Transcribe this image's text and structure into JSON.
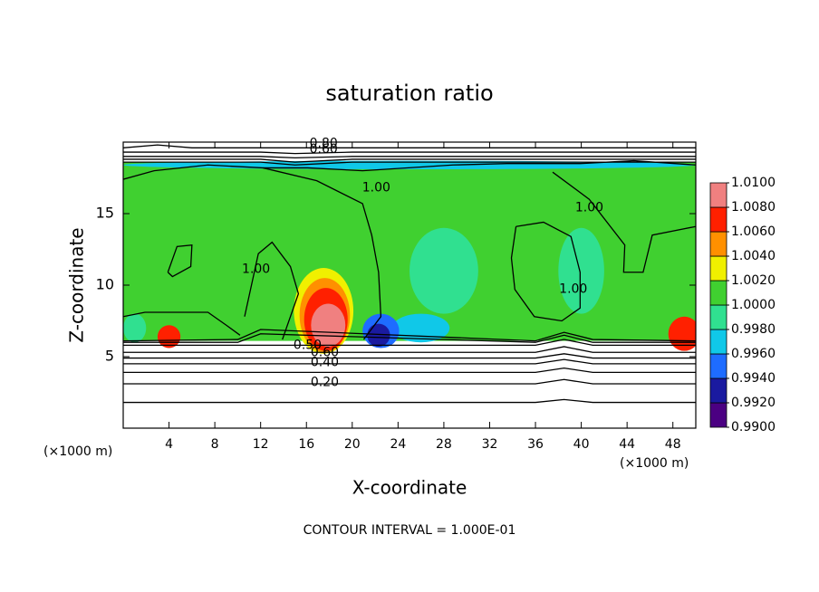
{
  "chart_data": {
    "type": "contour",
    "title": "saturation ratio",
    "xlabel": "X-coordinate",
    "ylabel": "Z-coordinate",
    "xunit": "(×1000 m)",
    "yunit": "(×1000 m)",
    "footer": "CONTOUR INTERVAL = 1.000E-01",
    "xlim": [
      0,
      50
    ],
    "ylim": [
      0,
      20
    ],
    "xticks": [
      4,
      8,
      12,
      16,
      20,
      24,
      28,
      32,
      36,
      40,
      44,
      48
    ],
    "yticks": [
      5,
      10,
      15
    ],
    "field_zlim": [
      6.1,
      18.6
    ],
    "background_value": 1.0005,
    "colorbar": {
      "lim": [
        0.99,
        1.01
      ],
      "colors": [
        "#4b0082",
        "#1a1aa0",
        "#1e6cff",
        "#10c8e8",
        "#30e090",
        "#40d030",
        "#f0f000",
        "#ff9000",
        "#ff2000",
        "#f08080"
      ],
      "ticks": [
        {
          "value": 1.01,
          "label": "1.0100"
        },
        {
          "value": 1.008,
          "label": "1.0080"
        },
        {
          "value": 1.006,
          "label": "1.0060"
        },
        {
          "value": 1.004,
          "label": "1.0040"
        },
        {
          "value": 1.002,
          "label": "1.0020"
        },
        {
          "value": 1.0,
          "label": "1.0000"
        },
        {
          "value": 0.998,
          "label": "0.9980"
        },
        {
          "value": 0.996,
          "label": "0.9960"
        },
        {
          "value": 0.994,
          "label": "0.9940"
        },
        {
          "value": 0.992,
          "label": "0.9920"
        },
        {
          "value": 0.99,
          "label": "0.9900"
        }
      ]
    },
    "features": [
      {
        "x": 25,
        "y": 18.4,
        "rx": 25,
        "ry": 0.3,
        "value": 0.997
      },
      {
        "x": 28,
        "y": 11,
        "rx": 3,
        "ry": 3,
        "value": 0.999
      },
      {
        "x": 40,
        "y": 11,
        "rx": 2,
        "ry": 3,
        "value": 0.999
      },
      {
        "x": 26,
        "y": 7,
        "rx": 2.5,
        "ry": 1,
        "value": 0.997
      },
      {
        "x": 1,
        "y": 7,
        "rx": 1,
        "ry": 1,
        "value": 0.999
      },
      {
        "x": 17.5,
        "y": 8.2,
        "rx": 2.6,
        "ry": 3.0,
        "value": 1.003
      },
      {
        "x": 17.6,
        "y": 7.9,
        "rx": 2.2,
        "ry": 2.6,
        "value": 1.005
      },
      {
        "x": 17.7,
        "y": 7.6,
        "rx": 1.9,
        "ry": 2.2,
        "value": 1.007
      },
      {
        "x": 17.9,
        "y": 7.2,
        "rx": 1.5,
        "ry": 1.5,
        "value": 1.009
      },
      {
        "x": 4,
        "y": 6.4,
        "rx": 1.0,
        "ry": 0.8,
        "value": 1.006
      },
      {
        "x": 49,
        "y": 6.6,
        "rx": 1.4,
        "ry": 1.2,
        "value": 1.006
      },
      {
        "x": 22.5,
        "y": 6.8,
        "rx": 1.6,
        "ry": 1.2,
        "value": 0.995
      },
      {
        "x": 22.3,
        "y": 6.5,
        "rx": 1.0,
        "ry": 0.8,
        "value": 0.993
      }
    ],
    "contours": [
      {
        "level": 0.1,
        "x": [
          0,
          12,
          36,
          38.5,
          41,
          50
        ],
        "y": [
          1.8,
          1.8,
          1.8,
          2.0,
          1.8,
          1.8
        ]
      },
      {
        "level": 0.2,
        "x": [
          0,
          12,
          36,
          38.5,
          41,
          50
        ],
        "y": [
          3.1,
          3.1,
          3.1,
          3.4,
          3.1,
          3.1
        ]
      },
      {
        "level": 0.3,
        "x": [
          0,
          12,
          36,
          38.5,
          41,
          50
        ],
        "y": [
          3.9,
          3.9,
          3.9,
          4.2,
          3.9,
          3.9
        ]
      },
      {
        "level": 0.4,
        "x": [
          0,
          12,
          36,
          38.5,
          41,
          50
        ],
        "y": [
          4.5,
          4.5,
          4.5,
          4.8,
          4.5,
          4.5
        ]
      },
      {
        "level": 0.5,
        "x": [
          0,
          12,
          36,
          38.5,
          41,
          50
        ],
        "y": [
          4.9,
          4.9,
          4.9,
          5.2,
          4.9,
          4.9
        ]
      },
      {
        "level": 0.6,
        "x": [
          0,
          12,
          36,
          38.5,
          41,
          50
        ],
        "y": [
          5.3,
          5.3,
          5.3,
          5.7,
          5.3,
          5.3
        ]
      },
      {
        "level": 0.7,
        "x": [
          0,
          12,
          36,
          38.5,
          41,
          50
        ],
        "y": [
          5.8,
          5.8,
          5.8,
          6.2,
          5.8,
          5.8
        ]
      },
      {
        "level": 0.8,
        "x": [
          0,
          10,
          12,
          36,
          38.5,
          41,
          50
        ],
        "y": [
          6.0,
          6.0,
          6.6,
          6.0,
          6.5,
          6.0,
          6.0
        ]
      },
      {
        "level": 0.9,
        "x": [
          0,
          10,
          12,
          36,
          38.5,
          41,
          50
        ],
        "y": [
          6.1,
          6.2,
          6.9,
          6.1,
          6.7,
          6.2,
          6.1
        ]
      },
      {
        "level": 0.9,
        "x": [
          0,
          12,
          15,
          20,
          50
        ],
        "y": [
          18.6,
          18.6,
          18.4,
          18.6,
          18.6
        ]
      },
      {
        "level": 0.8,
        "x": [
          0,
          12,
          15,
          20,
          50
        ],
        "y": [
          18.8,
          18.8,
          18.6,
          18.8,
          18.8
        ]
      },
      {
        "level": 0.7,
        "x": [
          0,
          12,
          15,
          20,
          50
        ],
        "y": [
          19.0,
          19.0,
          18.9,
          19.0,
          19.0
        ]
      },
      {
        "level": 0.6,
        "x": [
          0,
          12,
          15,
          20,
          50
        ],
        "y": [
          19.3,
          19.3,
          19.2,
          19.3,
          19.3
        ]
      },
      {
        "level": 0.5,
        "x": [
          0,
          3,
          6,
          50
        ],
        "y": [
          19.6,
          19.8,
          19.6,
          19.6
        ]
      },
      {
        "level": 1.0,
        "x": [
          0,
          2.7,
          7.4,
          12.2,
          16.1,
          20.9,
          28.8,
          33.5,
          39.9,
          44.6,
          50
        ],
        "y": [
          17.4,
          18.0,
          18.4,
          18.2,
          18.2,
          18.0,
          18.4,
          18.5,
          18.5,
          18.7,
          18.4
        ]
      },
      {
        "level": 1.0,
        "x": [
          12.2,
          16.9,
          20.9,
          21.7,
          22.3,
          22.5,
          21.0
        ],
        "y": [
          18.2,
          17.3,
          15.7,
          13.5,
          10.9,
          7.8,
          6.2
        ]
      },
      {
        "level": 1.0,
        "x": [
          37.5,
          40.7,
          43.8,
          43.7,
          45.4,
          46.2,
          50
        ],
        "y": [
          17.9,
          16.0,
          12.8,
          10.9,
          10.9,
          13.5,
          14.1
        ]
      },
      {
        "level": 1.0,
        "x": [
          34.3,
          36.7,
          39.1,
          39.9,
          39.9,
          38.3,
          35.9,
          34.2,
          33.9,
          34.3
        ],
        "y": [
          14.1,
          14.4,
          13.4,
          10.9,
          8.4,
          7.5,
          7.8,
          9.7,
          11.9,
          14.1
        ]
      },
      {
        "level": 1.0,
        "x": [
          3.9,
          4.7,
          6.0,
          5.9,
          4.3,
          3.9
        ],
        "y": [
          10.9,
          12.7,
          12.8,
          11.3,
          10.6,
          10.9
        ]
      },
      {
        "level": 1.0,
        "x": [
          10.6,
          11.8,
          13.0,
          14.6,
          15.3,
          13.9
        ],
        "y": [
          7.8,
          12.2,
          13.0,
          11.3,
          9.4,
          6.2
        ]
      },
      {
        "level": 1.0,
        "x": [
          0,
          1.9,
          7.4,
          9.0,
          10.2
        ],
        "y": [
          7.8,
          8.1,
          8.1,
          7.2,
          6.5
        ]
      }
    ],
    "contour_labels": [
      {
        "x": 17.5,
        "y": 19.9,
        "value": 0.8,
        "label": "0.80"
      },
      {
        "x": 17.5,
        "y": 19.5,
        "value": 0.6,
        "label": "0.60"
      },
      {
        "x": 22.1,
        "y": 16.8,
        "value": 1.0,
        "label": "1.00"
      },
      {
        "x": 40.7,
        "y": 15.4,
        "value": 1.0,
        "label": "1.00"
      },
      {
        "x": 11.6,
        "y": 11.1,
        "value": 1.0,
        "label": "1.00"
      },
      {
        "x": 39.3,
        "y": 9.7,
        "value": 1.0,
        "label": "1.00"
      },
      {
        "x": 16.1,
        "y": 5.8,
        "value": 0.5,
        "label": "0.50"
      },
      {
        "x": 17.6,
        "y": 5.3,
        "value": 0.6,
        "label": "0.60"
      },
      {
        "x": 17.6,
        "y": 4.6,
        "value": 0.4,
        "label": "0.40"
      },
      {
        "x": 17.6,
        "y": 3.2,
        "value": 0.2,
        "label": "0.20"
      }
    ]
  }
}
